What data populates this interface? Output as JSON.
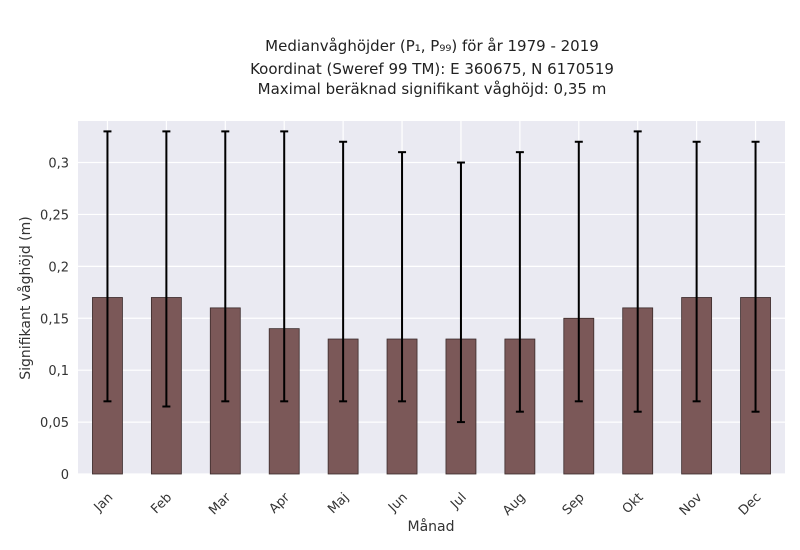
{
  "chart_data": {
    "type": "bar",
    "title_lines": [
      "Medianvåghöjder (P₁, P₉₉) för år 1979 - 2019",
      "Koordinat (Sweref 99 TM): E 360675, N 6170519",
      "Maximal beräknad signifikant våghöjd: 0,35 m"
    ],
    "xlabel": "Månad",
    "ylabel": "Signifikant våghöjd (m)",
    "categories": [
      "Jan",
      "Feb",
      "Mar",
      "Apr",
      "Maj",
      "Jun",
      "Jul",
      "Aug",
      "Sep",
      "Okt",
      "Nov",
      "Dec"
    ],
    "series": [
      {
        "values": [
          0.17,
          0.17,
          0.16,
          0.14,
          0.13,
          0.13,
          0.13,
          0.13,
          0.15,
          0.16,
          0.17,
          0.17
        ],
        "err_low": [
          0.07,
          0.065,
          0.07,
          0.07,
          0.07,
          0.07,
          0.05,
          0.06,
          0.07,
          0.06,
          0.07,
          0.06
        ],
        "err_high": [
          0.33,
          0.33,
          0.33,
          0.33,
          0.32,
          0.31,
          0.3,
          0.31,
          0.32,
          0.33,
          0.32,
          0.32
        ]
      }
    ],
    "ylim": [
      0,
      0.34
    ],
    "yticks": [
      0,
      0.05,
      0.1,
      0.15,
      0.2,
      0.25,
      0.3
    ],
    "ytick_labels": [
      "0",
      "0,05",
      "0,1",
      "0,15",
      "0,2",
      "0,25",
      "0,3"
    ],
    "grid": true,
    "colors": {
      "bar": "#7b5858",
      "bar_edge": "#3a2a2a",
      "background": "#eaeaf2",
      "grid": "#ffffff",
      "errorbar": "#000000"
    }
  }
}
